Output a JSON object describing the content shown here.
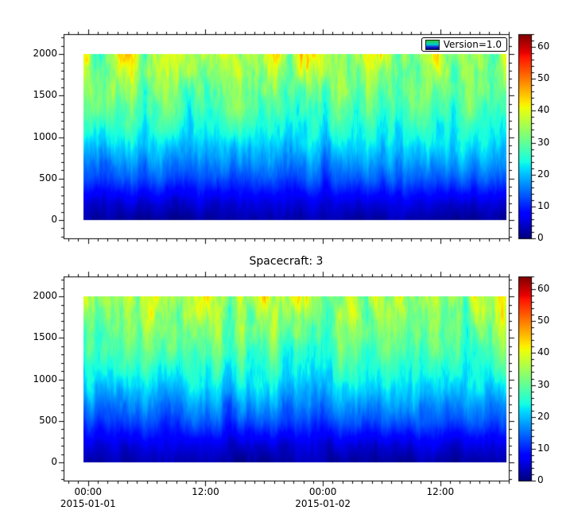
{
  "figure": {
    "bottom_plot_title": "Spacecraft: 3",
    "legend_label": "Version=1.0",
    "background": "#ffffff"
  },
  "chart_data": [
    {
      "type": "heatmap",
      "panel": "top",
      "legend": "Version=1.0",
      "colormap": "jet",
      "colorbar_range": [
        0,
        64
      ],
      "colorbar_tick_values": [
        0,
        10,
        20,
        30,
        40,
        50,
        60
      ],
      "colorbar_tick_labels": [
        "0",
        "10",
        "20",
        "30",
        "40",
        "50",
        "60"
      ],
      "x_start": "2015-01-01 00:00",
      "x_end": "2015-01-02 19:00",
      "y_range": [
        0,
        2000
      ],
      "y_tick_values": [
        0,
        500,
        1000,
        1500,
        2000
      ],
      "y_tick_labels": [
        "0",
        "500",
        "1000",
        "1500",
        "2000"
      ],
      "mean_value_profile": {
        "y": [
          0,
          200,
          500,
          1000,
          1400,
          1700,
          2000
        ],
        "value": [
          2,
          5,
          13,
          23,
          29,
          33,
          37
        ]
      },
      "pattern": "vertical noisy streaks; dark blue 0-300, blue-cyan 300-1100, green 1100-1900, yellow patches near 2000"
    },
    {
      "type": "heatmap",
      "panel": "bottom",
      "title": "Spacecraft: 3",
      "colormap": "jet",
      "colorbar_range": [
        0,
        64
      ],
      "colorbar_tick_values": [
        0,
        10,
        20,
        30,
        40,
        50,
        60
      ],
      "colorbar_tick_labels": [
        "0",
        "10",
        "20",
        "30",
        "40",
        "50",
        "60"
      ],
      "x_tick_hours": [
        0,
        12,
        24,
        36
      ],
      "x_tick_labels": [
        "00:00",
        "12:00",
        "00:00",
        "12:00"
      ],
      "x_date_labels": [
        {
          "text": "2015-01-01",
          "hour": 0
        },
        {
          "text": "2015-01-02",
          "hour": 24
        }
      ],
      "x_start": "2015-01-01 00:00",
      "x_end": "2015-01-02 19:00",
      "y_range": [
        0,
        2000
      ],
      "y_tick_values": [
        0,
        500,
        1000,
        1500,
        2000
      ],
      "y_tick_labels": [
        "0",
        "500",
        "1000",
        "1500",
        "2000"
      ],
      "mean_value_profile": {
        "y": [
          0,
          200,
          500,
          1000,
          1400,
          1700,
          2000
        ],
        "value": [
          2,
          5,
          13,
          23,
          29,
          33,
          37
        ]
      },
      "pattern": "same as top panel"
    }
  ]
}
